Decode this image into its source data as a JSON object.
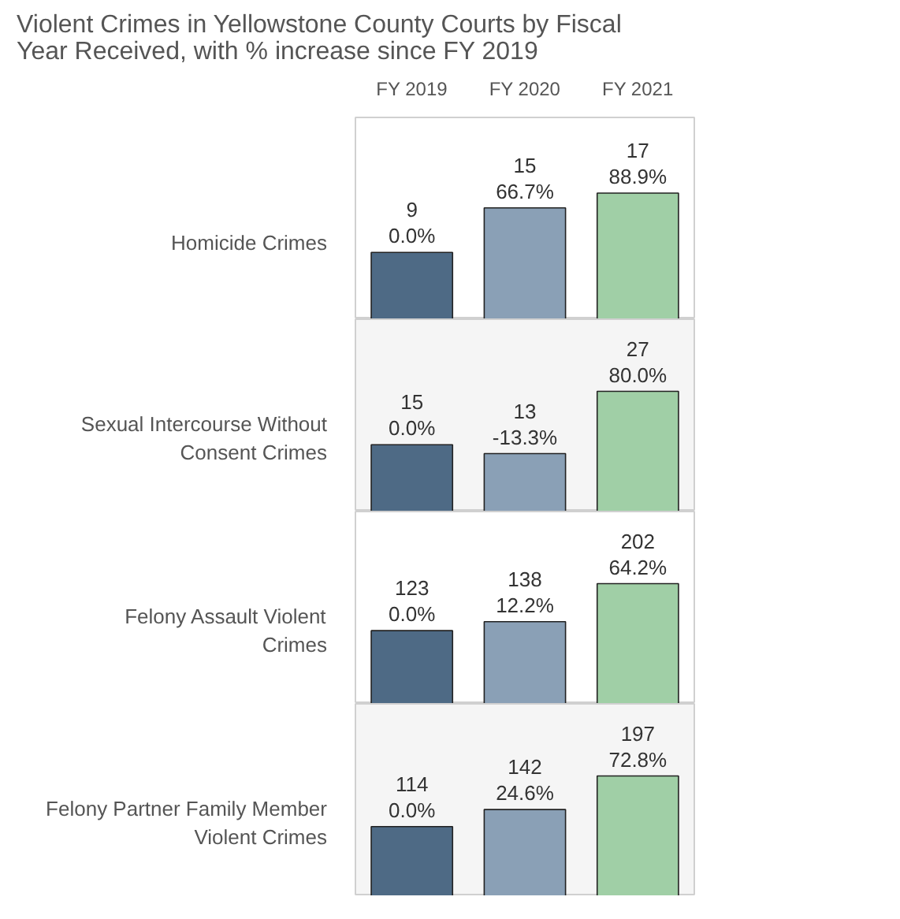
{
  "chart_data": [
    {
      "type": "bar",
      "title": "Violent Crimes in Yellowstone County Courts by Fiscal Year Received, with % increase since FY 2019",
      "ylabel": "Homicide Crimes",
      "categories": [
        "FY 2019",
        "FY 2020",
        "FY 2021"
      ],
      "values": [
        9,
        15,
        17
      ],
      "colors": [
        "#4e6a85",
        "#8aa0b6",
        "#a0cfa6"
      ],
      "value_labels": [
        "9\n0.0%",
        "15\n66.7%",
        "17\n88.9%"
      ],
      "grid": false,
      "tick_labels": "x"
    },
    {
      "type": "bar",
      "ylabel": "Sexual Intercourse Without Consent Crimes",
      "categories": [
        "FY 2019",
        "FY 2020",
        "FY 2021"
      ],
      "values": [
        15,
        13,
        27
      ],
      "colors": [
        "#4e6a85",
        "#8aa0b6",
        "#a0cfa6"
      ],
      "value_labels": [
        "15\n0.0%",
        "13\n-13.3%",
        "27\n80.0%"
      ],
      "grid": false,
      "tick_labels": false
    },
    {
      "type": "bar",
      "ylabel": "Felony Assault Violent Crimes",
      "categories": [
        "FY 2019",
        "FY 2020",
        "FY 2021"
      ],
      "values": [
        123,
        138,
        202
      ],
      "colors": [
        "#4e6a85",
        "#8aa0b6",
        "#a0cfa6"
      ],
      "value_labels": [
        "123\n0.0%",
        "138\n12.2%",
        "202\n64.2%"
      ],
      "grid": false,
      "tick_labels": false
    },
    {
      "type": "bar",
      "ylabel": "Felony Partner Family Member Violent Crimes",
      "categories": [
        "FY 2019",
        "FY 2020",
        "FY 2021"
      ],
      "values": [
        114,
        142,
        197
      ],
      "colors": [
        "#4e6a85",
        "#8aa0b6",
        "#a0cfa6"
      ],
      "value_labels": [
        "114\n0.0%",
        "142\n24.6%",
        "197\n72.8%"
      ],
      "grid": false,
      "tick_labels": false
    }
  ]
}
